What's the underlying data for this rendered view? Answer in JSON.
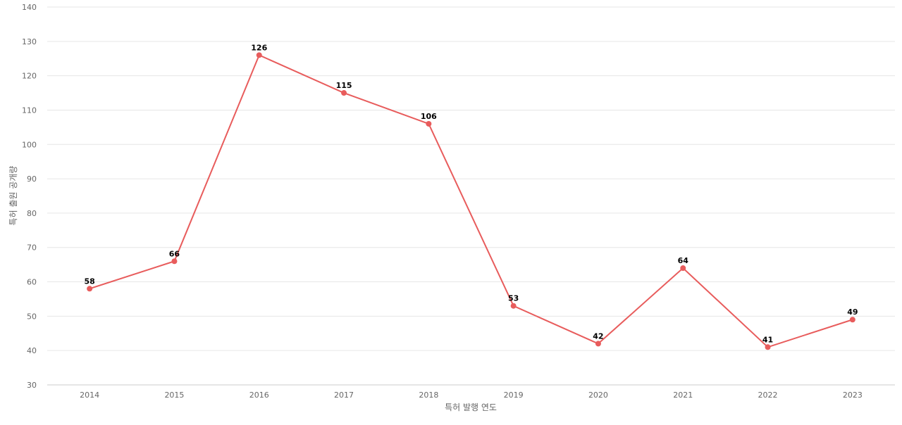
{
  "chart_data": {
    "type": "line",
    "x": [
      "2014",
      "2015",
      "2016",
      "2017",
      "2018",
      "2019",
      "2020",
      "2021",
      "2022",
      "2023"
    ],
    "series": [
      {
        "values": [
          58,
          66,
          126,
          115,
          106,
          53,
          42,
          64,
          41,
          49
        ],
        "color": "#e85c5c"
      }
    ],
    "xlabel": "특허 발행 연도",
    "ylabel": "특허 출원 공개량",
    "ylim": [
      30,
      140
    ],
    "yticks": [
      30,
      40,
      50,
      60,
      70,
      80,
      90,
      100,
      110,
      120,
      130,
      140
    ],
    "grid": true,
    "legend": "none"
  }
}
